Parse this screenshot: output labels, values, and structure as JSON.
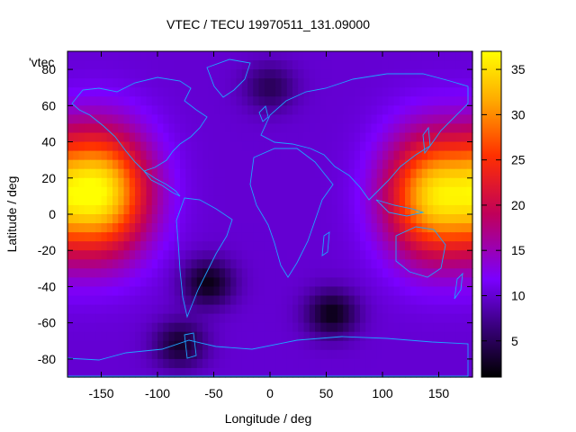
{
  "title": "VTEC / TECU 19970511_131.09000",
  "map": {
    "xlabel": "Longitude / deg",
    "ylabel": "Latitude / deg",
    "x_ticks": [
      "-150",
      "-100",
      "-50",
      "0",
      "50",
      "100",
      "150"
    ],
    "y_ticks": [
      "80",
      "60",
      "40",
      "20",
      "0",
      "-20",
      "-40",
      "-60",
      "-80"
    ],
    "xlim": [
      -180,
      180
    ],
    "ylim": [
      -90,
      90
    ],
    "legend_label": "'vtec",
    "coastline_color": "#1ea4ff"
  },
  "colorbar": {
    "range": [
      1,
      37
    ],
    "ticks": [
      "35",
      "30",
      "25",
      "20",
      "15",
      "10",
      "5"
    ],
    "palette": [
      "#000000",
      "#3b0080",
      "#7a00ff",
      "#c0005a",
      "#ff3000",
      "#ffaa00",
      "#ffff00"
    ]
  },
  "chart_data": {
    "type": "heatmap",
    "title": "VTEC / TECU 19970511_131.09000",
    "xlabel": "Longitude / deg",
    "ylabel": "Latitude / deg",
    "xlim": [
      -180,
      180
    ],
    "ylim": [
      -90,
      90
    ],
    "zlim": [
      1,
      37
    ],
    "background_level": 10,
    "features": [
      {
        "type": "maximum",
        "lon": -150,
        "lat": 12,
        "vtec": 35
      },
      {
        "type": "maximum",
        "lon": 145,
        "lat": 10,
        "vtec": 33
      },
      {
        "type": "minimum",
        "lon": -55,
        "lat": -38,
        "vtec": 2
      },
      {
        "type": "minimum",
        "lon": 55,
        "lat": -55,
        "vtec": 2
      },
      {
        "type": "minimum",
        "lon": -80,
        "lat": -72,
        "vtec": 3
      },
      {
        "type": "minimum",
        "lon": 0,
        "lat": 70,
        "vtec": 5
      }
    ]
  }
}
